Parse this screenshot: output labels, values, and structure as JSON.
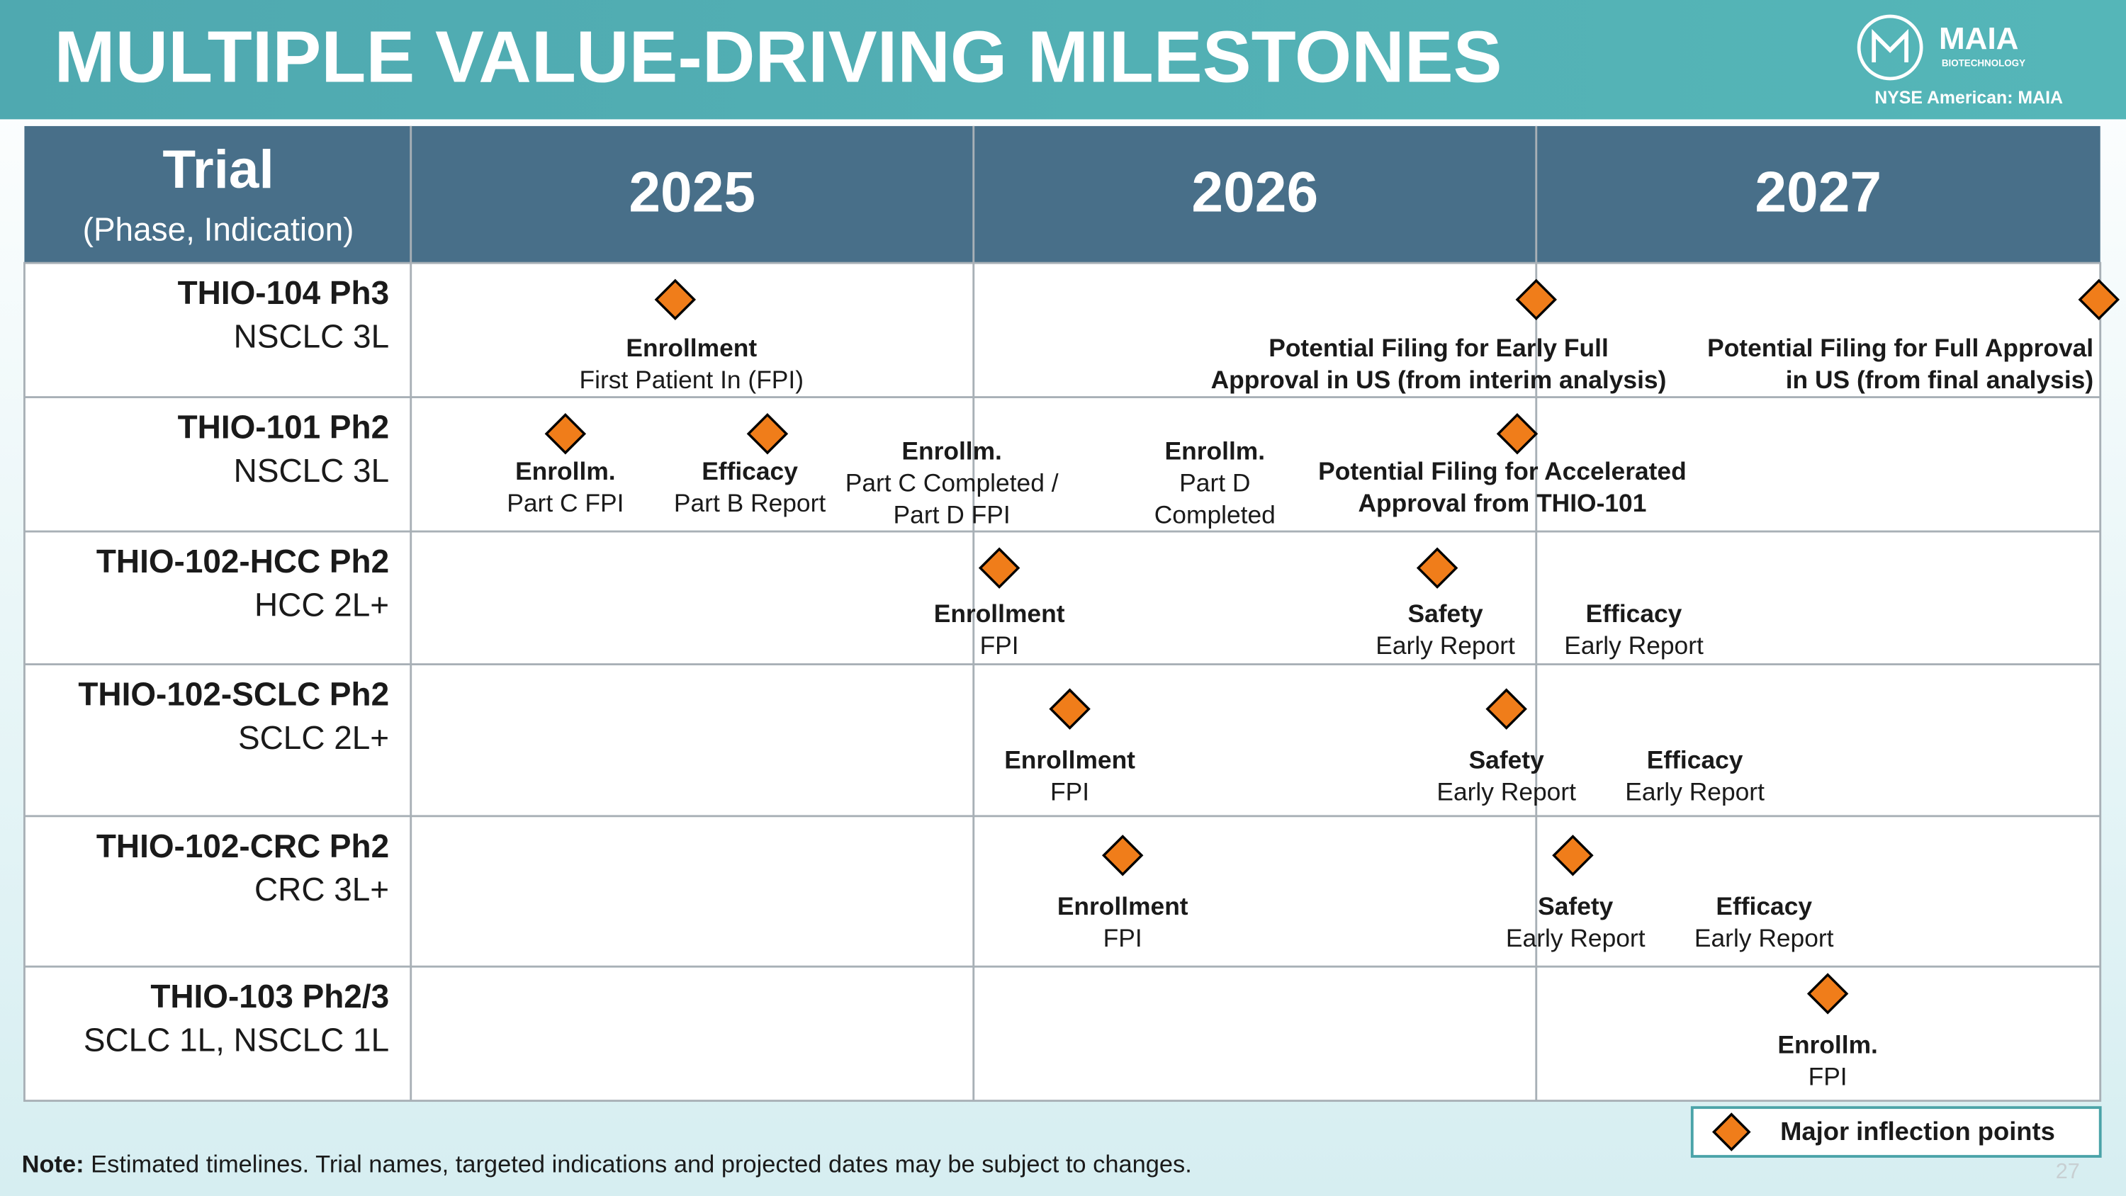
{
  "header": {
    "title": "MULTIPLE VALUE-DRIVING MILESTONES",
    "logo_name": "MAIA",
    "logo_sub": "BIOTECHNOLOGY",
    "ticker": "NYSE American: MAIA"
  },
  "table": {
    "trial_header": "Trial",
    "trial_subheader": "(Phase, Indication)",
    "years": [
      "2025",
      "2026",
      "2027"
    ],
    "rows": [
      {
        "trial": "THIO-104 Ph3",
        "indication": "NSCLC 3L",
        "milestones": [
          {
            "title_lines": [
              "Enrollment"
            ],
            "detail_lines": [
              "First Patient In (FPI)"
            ]
          },
          {
            "title_lines": [
              "Potential Filing for Early Full",
              "Approval in US (from interim analysis)"
            ],
            "detail_lines": []
          },
          {
            "title_lines": [
              "Potential Filing for Full Approval",
              "in US (from final analysis)"
            ],
            "detail_lines": []
          }
        ]
      },
      {
        "trial": "THIO-101 Ph2",
        "indication": "NSCLC 3L",
        "milestones": [
          {
            "title_lines": [
              "Enrollm."
            ],
            "detail_lines": [
              "Part C FPI"
            ]
          },
          {
            "title_lines": [
              "Efficacy"
            ],
            "detail_lines": [
              "Part B Report"
            ]
          },
          {
            "title_lines": [
              "Enrollm."
            ],
            "detail_lines": [
              "Part C Completed /",
              "Part D FPI"
            ]
          },
          {
            "title_lines": [
              "Enrollm."
            ],
            "detail_lines": [
              "Part D",
              "Completed"
            ]
          },
          {
            "title_lines": [
              "Potential Filing for Accelerated",
              "Approval from THIO-101"
            ],
            "detail_lines": []
          }
        ]
      },
      {
        "trial": "THIO-102-HCC Ph2",
        "indication": "HCC 2L+",
        "milestones": [
          {
            "title_lines": [
              "Enrollment"
            ],
            "detail_lines": [
              "FPI"
            ]
          },
          {
            "title_lines": [
              "Safety"
            ],
            "detail_lines": [
              "Early Report"
            ]
          },
          {
            "title_lines": [
              "Efficacy"
            ],
            "detail_lines": [
              "Early Report"
            ]
          }
        ]
      },
      {
        "trial": "THIO-102-SCLC Ph2",
        "indication": "SCLC 2L+",
        "milestones": [
          {
            "title_lines": [
              "Enrollment"
            ],
            "detail_lines": [
              "FPI"
            ]
          },
          {
            "title_lines": [
              "Safety"
            ],
            "detail_lines": [
              "Early Report"
            ]
          },
          {
            "title_lines": [
              "Efficacy"
            ],
            "detail_lines": [
              "Early Report"
            ]
          }
        ]
      },
      {
        "trial": "THIO-102-CRC Ph2",
        "indication": "CRC 3L+",
        "milestones": [
          {
            "title_lines": [
              "Enrollment"
            ],
            "detail_lines": [
              "FPI"
            ]
          },
          {
            "title_lines": [
              "Safety"
            ],
            "detail_lines": [
              "Early Report"
            ]
          },
          {
            "title_lines": [
              "Efficacy"
            ],
            "detail_lines": [
              "Early Report"
            ]
          }
        ]
      },
      {
        "trial": "THIO-103 Ph2/3",
        "indication": "SCLC 1L, NSCLC 1L",
        "milestones": [
          {
            "title_lines": [
              "Enrollm."
            ],
            "detail_lines": [
              "FPI"
            ]
          }
        ]
      }
    ]
  },
  "legend": {
    "label": "Major inflection points"
  },
  "note": {
    "label": "Note:",
    "text": "Estimated timelines. Trial names, targeted indications and projected dates may be subject to changes."
  },
  "page_number": "27"
}
